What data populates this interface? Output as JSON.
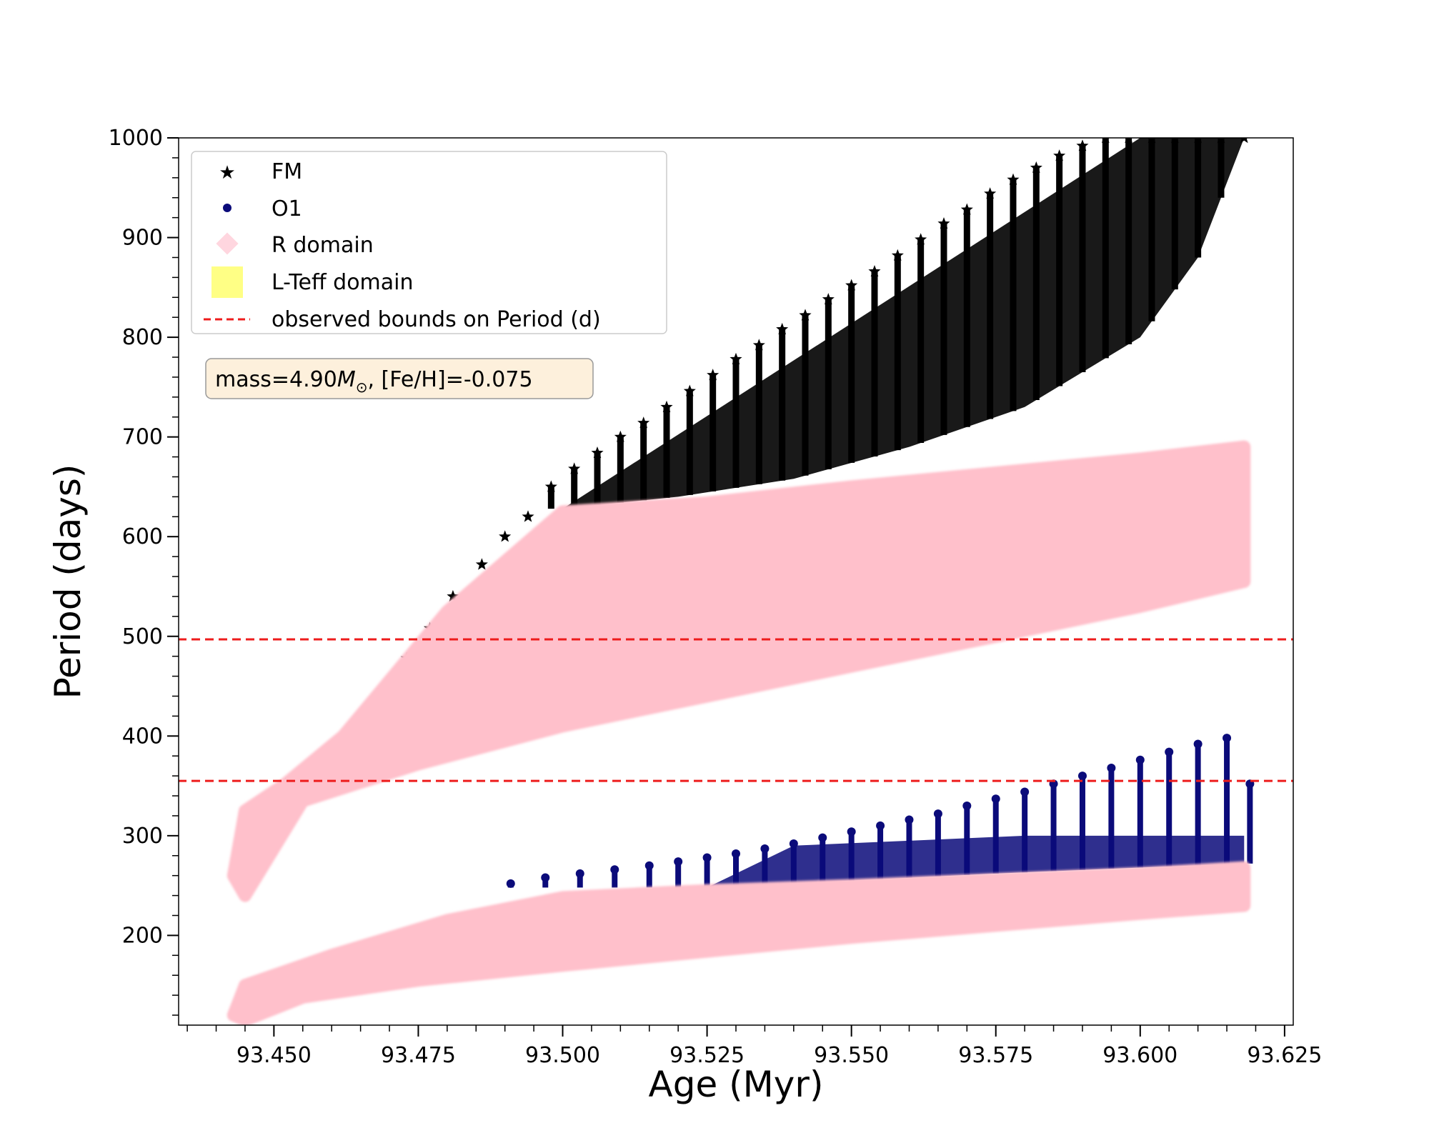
{
  "chart_data": {
    "type": "scatter",
    "title": "",
    "xlabel": "Age (Myr)",
    "ylabel": "Period (days)",
    "xlim": [
      93.4335,
      93.6265
    ],
    "ylim": [
      110,
      1000
    ],
    "xticks": [
      "93.450",
      "93.475",
      "93.500",
      "93.525",
      "93.550",
      "93.575",
      "93.600",
      "93.625"
    ],
    "yticks": [
      "200",
      "300",
      "400",
      "500",
      "600",
      "700",
      "800",
      "900",
      "1000"
    ],
    "grid": false,
    "legend_position": "upper-left",
    "annotation": {
      "text_prefix": "mass=4.90",
      "text_math": "M",
      "text_sub": "⊙",
      "text_suffix": ", [Fe/H]=-0.075"
    },
    "series": [
      {
        "name": "FM",
        "marker": "star",
        "color": "#000000",
        "points": [
          [
            93.445,
            300
          ],
          [
            93.452,
            352
          ],
          [
            93.458,
            372
          ],
          [
            93.464,
            412
          ],
          [
            93.469,
            446
          ],
          [
            93.473,
            478
          ],
          [
            93.477,
            508
          ],
          [
            93.481,
            540
          ],
          [
            93.486,
            572
          ],
          [
            93.49,
            600
          ],
          [
            93.494,
            620
          ],
          [
            93.498,
            650
          ],
          [
            93.502,
            668
          ],
          [
            93.506,
            684
          ],
          [
            93.51,
            700
          ],
          [
            93.514,
            714
          ],
          [
            93.518,
            730
          ],
          [
            93.522,
            746
          ],
          [
            93.526,
            762
          ],
          [
            93.53,
            778
          ],
          [
            93.534,
            792
          ],
          [
            93.538,
            808
          ],
          [
            93.542,
            822
          ],
          [
            93.546,
            838
          ],
          [
            93.55,
            852
          ],
          [
            93.554,
            866
          ],
          [
            93.558,
            882
          ],
          [
            93.562,
            898
          ],
          [
            93.566,
            914
          ],
          [
            93.57,
            928
          ],
          [
            93.574,
            944
          ],
          [
            93.578,
            958
          ],
          [
            93.582,
            970
          ],
          [
            93.586,
            982
          ],
          [
            93.59,
            992
          ],
          [
            93.594,
            1000
          ],
          [
            93.598,
            1000
          ],
          [
            93.602,
            1000
          ],
          [
            93.606,
            1000
          ],
          [
            93.61,
            1000
          ],
          [
            93.614,
            1000
          ],
          [
            93.618,
            1000
          ]
        ],
        "lower_envelope": [
          [
            93.5,
            628
          ],
          [
            93.52,
            640
          ],
          [
            93.54,
            658
          ],
          [
            93.56,
            690
          ],
          [
            93.58,
            730
          ],
          [
            93.6,
            800
          ],
          [
            93.61,
            880
          ],
          [
            93.618,
            1000
          ]
        ]
      },
      {
        "name": "O1",
        "marker": "circle",
        "color": "#0b0b7a",
        "points": [
          [
            93.491,
            252
          ],
          [
            93.497,
            258
          ],
          [
            93.503,
            262
          ],
          [
            93.509,
            266
          ],
          [
            93.515,
            270
          ],
          [
            93.52,
            274
          ],
          [
            93.525,
            278
          ],
          [
            93.53,
            282
          ],
          [
            93.535,
            287
          ],
          [
            93.54,
            292
          ],
          [
            93.545,
            298
          ],
          [
            93.55,
            304
          ],
          [
            93.555,
            310
          ],
          [
            93.56,
            316
          ],
          [
            93.565,
            322
          ],
          [
            93.57,
            330
          ],
          [
            93.575,
            337
          ],
          [
            93.58,
            344
          ],
          [
            93.585,
            352
          ],
          [
            93.59,
            360
          ],
          [
            93.595,
            368
          ],
          [
            93.6,
            376
          ],
          [
            93.605,
            384
          ],
          [
            93.61,
            392
          ],
          [
            93.615,
            398
          ],
          [
            93.619,
            352
          ]
        ],
        "lower_envelope": [
          [
            93.525,
            248
          ],
          [
            93.55,
            255
          ],
          [
            93.575,
            262
          ],
          [
            93.6,
            268
          ],
          [
            93.618,
            272
          ]
        ]
      },
      {
        "name": "R domain",
        "marker": "diamond",
        "color": "#ffc0cb",
        "regions": [
          [
            [
              93.443,
              260
            ],
            [
              93.445,
              325
            ],
            [
              93.452,
              352
            ],
            [
              93.462,
              400
            ],
            [
              93.48,
              525
            ],
            [
              93.5,
              625
            ],
            [
              93.525,
              634
            ],
            [
              93.55,
              650
            ],
            [
              93.575,
              664
            ],
            [
              93.6,
              678
            ],
            [
              93.618,
              690
            ],
            [
              93.618,
              555
            ],
            [
              93.6,
              530
            ],
            [
              93.575,
              500
            ],
            [
              93.55,
              470
            ],
            [
              93.525,
              440
            ],
            [
              93.5,
              410
            ],
            [
              93.475,
              372
            ],
            [
              93.455,
              335
            ],
            [
              93.445,
              240
            ]
          ],
          [
            [
              93.443,
              120
            ],
            [
              93.445,
              150
            ],
            [
              93.46,
              180
            ],
            [
              93.48,
              215
            ],
            [
              93.5,
              238
            ],
            [
              93.525,
              245
            ],
            [
              93.55,
              250
            ],
            [
              93.575,
              256
            ],
            [
              93.6,
              262
            ],
            [
              93.618,
              268
            ],
            [
              93.618,
              230
            ],
            [
              93.6,
              222
            ],
            [
              93.575,
              210
            ],
            [
              93.55,
              198
            ],
            [
              93.525,
              184
            ],
            [
              93.5,
              170
            ],
            [
              93.475,
              155
            ],
            [
              93.455,
              138
            ],
            [
              93.445,
              115
            ]
          ]
        ]
      },
      {
        "name": "L-Teff domain",
        "marker": "square",
        "color": "#ffff66",
        "points": []
      },
      {
        "name": "observed bounds on Period (d)",
        "type": "hline",
        "style": "dashed",
        "color": "#ee1c1c",
        "values": [
          355,
          497
        ]
      }
    ]
  }
}
